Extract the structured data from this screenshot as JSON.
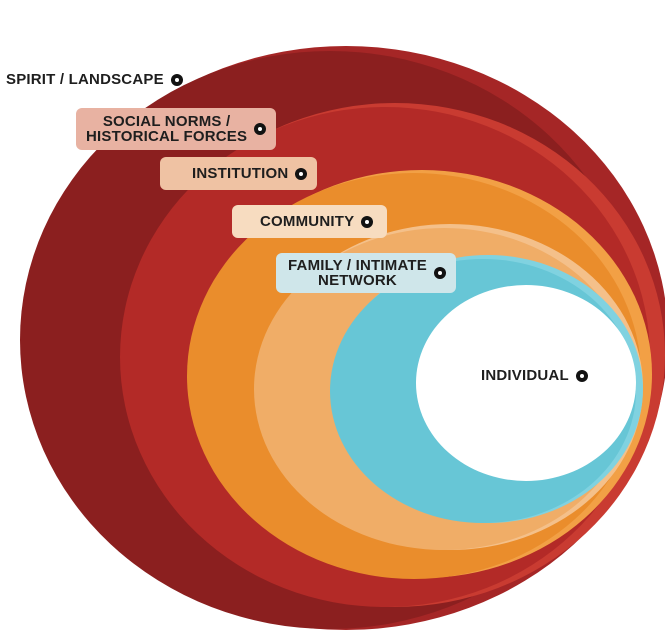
{
  "diagram": {
    "layers": [
      {
        "id": "spirit",
        "label": "SPIRIT / LANDSCAPE",
        "color": "#8b1f1f",
        "edge": "#a02424"
      },
      {
        "id": "social",
        "label": "SOCIAL NORMS / HISTORICAL FORCES",
        "color": "#b32a27",
        "edge": "#c33a30",
        "line1": "SOCIAL NORMS /",
        "line2": "HISTORICAL FORCES"
      },
      {
        "id": "institution",
        "label": "INSTITUTION",
        "color": "#ea8d2c",
        "edge": "#f09a3a"
      },
      {
        "id": "community",
        "label": "COMMUNITY",
        "color": "#f0ad67",
        "edge": "#f3bb7e"
      },
      {
        "id": "family",
        "label": "FAMILY / INTIMATE NETWORK",
        "color": "#67c6d6",
        "edge": "#7fd0de",
        "line1": "FAMILY / INTIMATE",
        "line2": "NETWORK"
      },
      {
        "id": "individual",
        "label": "INDIVIDUAL",
        "color": "#ffffff",
        "edge": "#ffffff"
      }
    ],
    "label_pill_colors": {
      "social": "#e8b2a2",
      "institution": "#efc2a3",
      "community": "#f7dcc0",
      "family": "#cfe6ea"
    }
  }
}
